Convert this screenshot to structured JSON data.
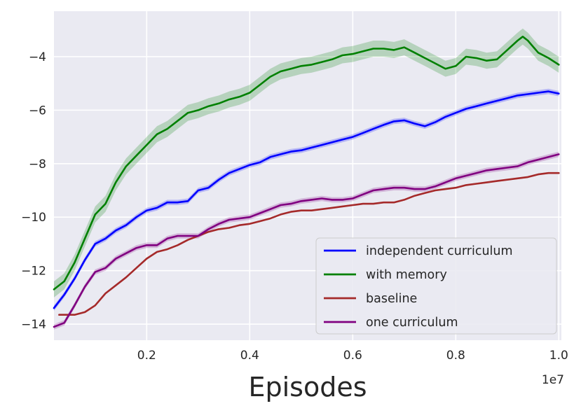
{
  "chart_data": {
    "type": "line",
    "title": "",
    "xlabel": "Episodes",
    "ylabel": "",
    "x_offset_label": "1e7",
    "xlim": [
      0.02,
      1.005
    ],
    "ylim": [
      -14.6,
      -2.3
    ],
    "xticks": [
      0.2,
      0.4,
      0.6,
      0.8,
      1.0
    ],
    "xtick_labels": [
      "0.2",
      "0.4",
      "0.6",
      "0.8",
      "1.0"
    ],
    "yticks": [
      -14,
      -12,
      -10,
      -8,
      -6,
      -4
    ],
    "ytick_labels": [
      "−14",
      "−12",
      "−10",
      "−8",
      "−6",
      "−4"
    ],
    "grid": true,
    "legend_position": "lower-right",
    "series": [
      {
        "name": "independent curriculum",
        "color": "#0000ff",
        "band": 0.1,
        "x": [
          0.02,
          0.04,
          0.06,
          0.08,
          0.1,
          0.12,
          0.14,
          0.16,
          0.18,
          0.2,
          0.22,
          0.24,
          0.26,
          0.28,
          0.3,
          0.32,
          0.34,
          0.36,
          0.38,
          0.4,
          0.42,
          0.44,
          0.46,
          0.48,
          0.5,
          0.52,
          0.54,
          0.56,
          0.58,
          0.6,
          0.62,
          0.64,
          0.66,
          0.68,
          0.7,
          0.72,
          0.74,
          0.76,
          0.78,
          0.8,
          0.82,
          0.84,
          0.86,
          0.88,
          0.9,
          0.92,
          0.94,
          0.96,
          0.98,
          1.0
        ],
        "y": [
          -13.4,
          -12.9,
          -12.3,
          -11.6,
          -11.0,
          -10.8,
          -10.5,
          -10.3,
          -10.0,
          -9.75,
          -9.65,
          -9.45,
          -9.45,
          -9.4,
          -9.0,
          -8.9,
          -8.6,
          -8.35,
          -8.2,
          -8.05,
          -7.95,
          -7.75,
          -7.65,
          -7.55,
          -7.5,
          -7.4,
          -7.3,
          -7.2,
          -7.1,
          -7.0,
          -6.85,
          -6.7,
          -6.55,
          -6.42,
          -6.38,
          -6.5,
          -6.6,
          -6.45,
          -6.25,
          -6.1,
          -5.95,
          -5.85,
          -5.75,
          -5.65,
          -5.55,
          -5.45,
          -5.4,
          -5.35,
          -5.3,
          -5.38
        ]
      },
      {
        "name": "with memory",
        "color": "#008000",
        "band": 0.3,
        "x": [
          0.02,
          0.04,
          0.06,
          0.08,
          0.1,
          0.12,
          0.14,
          0.16,
          0.18,
          0.2,
          0.22,
          0.24,
          0.26,
          0.28,
          0.3,
          0.32,
          0.34,
          0.36,
          0.38,
          0.4,
          0.42,
          0.44,
          0.46,
          0.48,
          0.5,
          0.52,
          0.54,
          0.56,
          0.58,
          0.6,
          0.62,
          0.64,
          0.66,
          0.68,
          0.7,
          0.72,
          0.74,
          0.76,
          0.78,
          0.8,
          0.82,
          0.84,
          0.86,
          0.88,
          0.9,
          0.92,
          0.93,
          0.94,
          0.96,
          0.98,
          1.0
        ],
        "y": [
          -12.7,
          -12.4,
          -11.7,
          -10.8,
          -9.9,
          -9.5,
          -8.7,
          -8.1,
          -7.7,
          -7.3,
          -6.9,
          -6.7,
          -6.4,
          -6.1,
          -6.0,
          -5.85,
          -5.75,
          -5.6,
          -5.5,
          -5.35,
          -5.05,
          -4.75,
          -4.55,
          -4.45,
          -4.35,
          -4.3,
          -4.2,
          -4.1,
          -3.95,
          -3.9,
          -3.8,
          -3.7,
          -3.7,
          -3.75,
          -3.65,
          -3.85,
          -4.05,
          -4.25,
          -4.45,
          -4.35,
          -4.0,
          -4.05,
          -4.15,
          -4.1,
          -3.75,
          -3.4,
          -3.25,
          -3.4,
          -3.85,
          -4.05,
          -4.3
        ]
      },
      {
        "name": "baseline",
        "color": "#a52a2a",
        "band": 0.03,
        "x": [
          0.03,
          0.04,
          0.06,
          0.08,
          0.1,
          0.12,
          0.14,
          0.16,
          0.18,
          0.2,
          0.22,
          0.24,
          0.26,
          0.28,
          0.3,
          0.32,
          0.34,
          0.36,
          0.38,
          0.4,
          0.42,
          0.44,
          0.46,
          0.48,
          0.5,
          0.52,
          0.54,
          0.56,
          0.58,
          0.6,
          0.62,
          0.64,
          0.66,
          0.68,
          0.7,
          0.72,
          0.74,
          0.76,
          0.78,
          0.8,
          0.82,
          0.84,
          0.86,
          0.88,
          0.9,
          0.92,
          0.94,
          0.96,
          0.98,
          1.0
        ],
        "y": [
          -13.65,
          -13.65,
          -13.65,
          -13.55,
          -13.3,
          -12.85,
          -12.55,
          -12.25,
          -11.9,
          -11.55,
          -11.3,
          -11.2,
          -11.05,
          -10.85,
          -10.7,
          -10.55,
          -10.45,
          -10.4,
          -10.3,
          -10.25,
          -10.15,
          -10.05,
          -9.9,
          -9.8,
          -9.75,
          -9.75,
          -9.7,
          -9.65,
          -9.6,
          -9.55,
          -9.5,
          -9.5,
          -9.45,
          -9.45,
          -9.35,
          -9.2,
          -9.1,
          -9.0,
          -8.95,
          -8.9,
          -8.8,
          -8.75,
          -8.7,
          -8.65,
          -8.6,
          -8.55,
          -8.5,
          -8.4,
          -8.35,
          -8.35
        ]
      },
      {
        "name": "one curriculum",
        "color": "#800080",
        "band": 0.1,
        "x": [
          0.02,
          0.04,
          0.06,
          0.08,
          0.1,
          0.12,
          0.14,
          0.16,
          0.18,
          0.2,
          0.22,
          0.24,
          0.26,
          0.28,
          0.3,
          0.32,
          0.34,
          0.36,
          0.38,
          0.4,
          0.42,
          0.44,
          0.46,
          0.48,
          0.5,
          0.52,
          0.54,
          0.56,
          0.58,
          0.6,
          0.62,
          0.64,
          0.66,
          0.68,
          0.7,
          0.72,
          0.74,
          0.76,
          0.78,
          0.8,
          0.82,
          0.84,
          0.86,
          0.88,
          0.9,
          0.92,
          0.94,
          0.96,
          0.98,
          1.0
        ],
        "y": [
          -14.1,
          -13.95,
          -13.3,
          -12.6,
          -12.05,
          -11.9,
          -11.55,
          -11.35,
          -11.15,
          -11.05,
          -11.05,
          -10.8,
          -10.7,
          -10.7,
          -10.7,
          -10.45,
          -10.25,
          -10.1,
          -10.05,
          -10.0,
          -9.85,
          -9.7,
          -9.55,
          -9.5,
          -9.4,
          -9.35,
          -9.3,
          -9.35,
          -9.35,
          -9.3,
          -9.15,
          -9.0,
          -8.95,
          -8.9,
          -8.9,
          -8.95,
          -8.95,
          -8.85,
          -8.7,
          -8.55,
          -8.45,
          -8.35,
          -8.25,
          -8.2,
          -8.15,
          -8.1,
          -7.95,
          -7.85,
          -7.75,
          -7.65
        ]
      }
    ]
  }
}
